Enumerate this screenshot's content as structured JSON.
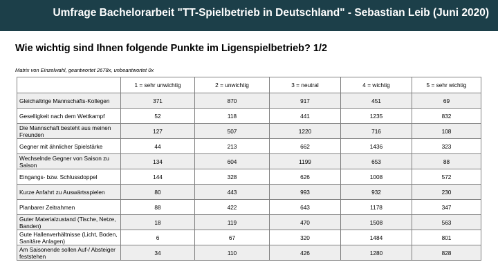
{
  "header": {
    "title": "Umfrage Bachelorarbeit \"TT-Spielbetrieb in Deutschland\" - Sebastian Leib (Juni 2020)"
  },
  "question": "Wie wichtig sind Ihnen folgende Punkte im Ligenspielbetrieb? 1/2",
  "meta": "Matrix von Einzelwahl, geantwortet 2678x, unbeantwortet 0x",
  "colors": {
    "header_bg": "#1c3f49",
    "row_shade": "#eeeeee",
    "border": "#7f7f7f"
  },
  "table": {
    "columns": [
      "",
      "1 = sehr unwichtig",
      "2 = unwichtig",
      "3 = neutral",
      "4 = wichtig",
      "5 = sehr wichtig"
    ],
    "rows": [
      {
        "label": "Gleichaltrige Mannschafts-Kollegen",
        "values": [
          "371",
          "870",
          "917",
          "451",
          "69"
        ]
      },
      {
        "label": "Geselligkeit nach dem Wettkampf",
        "values": [
          "52",
          "118",
          "441",
          "1235",
          "832"
        ]
      },
      {
        "label": "Die Mannschaft besteht aus meinen Freunden",
        "values": [
          "127",
          "507",
          "1220",
          "716",
          "108"
        ]
      },
      {
        "label": "Gegner mit ähnlicher Spielstärke",
        "values": [
          "44",
          "213",
          "662",
          "1436",
          "323"
        ]
      },
      {
        "label": "Wechselnde Gegner von Saison zu Saison",
        "values": [
          "134",
          "604",
          "1199",
          "653",
          "88"
        ]
      },
      {
        "label": "Eingangs- bzw. Schlussdoppel",
        "values": [
          "144",
          "328",
          "626",
          "1008",
          "572"
        ]
      },
      {
        "label": "Kurze Anfahrt zu Auswärtsspielen",
        "values": [
          "80",
          "443",
          "993",
          "932",
          "230"
        ]
      },
      {
        "label": "Planbarer Zeitrahmen",
        "values": [
          "88",
          "422",
          "643",
          "1178",
          "347"
        ]
      },
      {
        "label": "Guter Materialzustand (Tische, Netze, Banden)",
        "values": [
          "18",
          "119",
          "470",
          "1508",
          "563"
        ]
      },
      {
        "label": "Gute Hallenverhältnisse (Licht, Boden, Sanitäre Anlagen)",
        "values": [
          "6",
          "67",
          "320",
          "1484",
          "801"
        ]
      },
      {
        "label": "Am Saisonende sollen Auf-/ Absteiger feststehen",
        "values": [
          "34",
          "110",
          "426",
          "1280",
          "828"
        ]
      }
    ]
  }
}
